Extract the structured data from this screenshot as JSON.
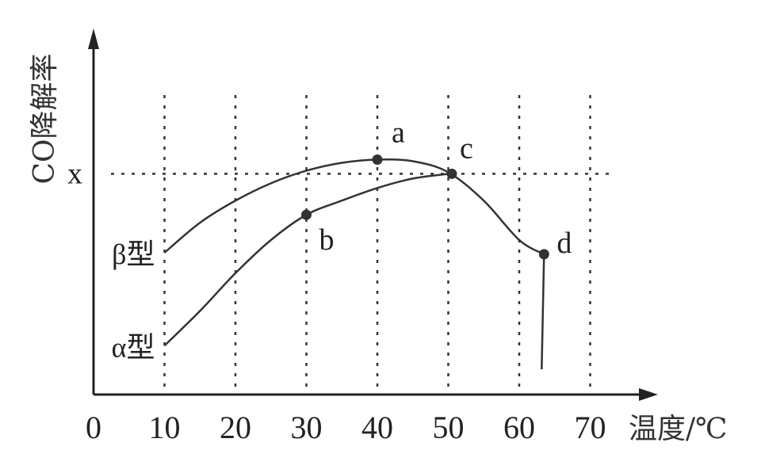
{
  "chart_data": {
    "type": "line",
    "xlabel": "温度/℃",
    "ylabel": "CO降解率",
    "x_ticks": [
      "0",
      "10",
      "20",
      "30",
      "40",
      "50",
      "60",
      "70"
    ],
    "xlim": [
      0,
      70
    ],
    "y_marker_label": "x",
    "y_marker_value": 0.7,
    "ylim": [
      0,
      1
    ],
    "grid": "dashed vertical lines at x ticks, dashed horizontal reference line at x",
    "series": [
      {
        "name": "β型",
        "x": [
          10,
          15,
          20,
          25,
          30,
          35,
          40,
          45,
          50,
          55,
          60,
          63.5
        ],
        "y": [
          0.45,
          0.545,
          0.615,
          0.67,
          0.71,
          0.735,
          0.745,
          0.74,
          0.705,
          0.615,
          0.49,
          0.445
        ]
      },
      {
        "name": "α型",
        "x": [
          10,
          15,
          20,
          25,
          30,
          35,
          40,
          45,
          50,
          51
        ],
        "y": [
          0.155,
          0.265,
          0.385,
          0.49,
          0.57,
          0.615,
          0.655,
          0.685,
          0.7,
          0.705
        ]
      }
    ],
    "drop_line": {
      "x": 63.5,
      "y_from": 0.445,
      "y_to": 0.08
    },
    "points": [
      {
        "label": "a",
        "x": 40,
        "y": 0.745
      },
      {
        "label": "b",
        "x": 30,
        "y": 0.57
      },
      {
        "label": "c",
        "x": 50.5,
        "y": 0.7
      },
      {
        "label": "d",
        "x": 63.5,
        "y": 0.445
      }
    ]
  }
}
